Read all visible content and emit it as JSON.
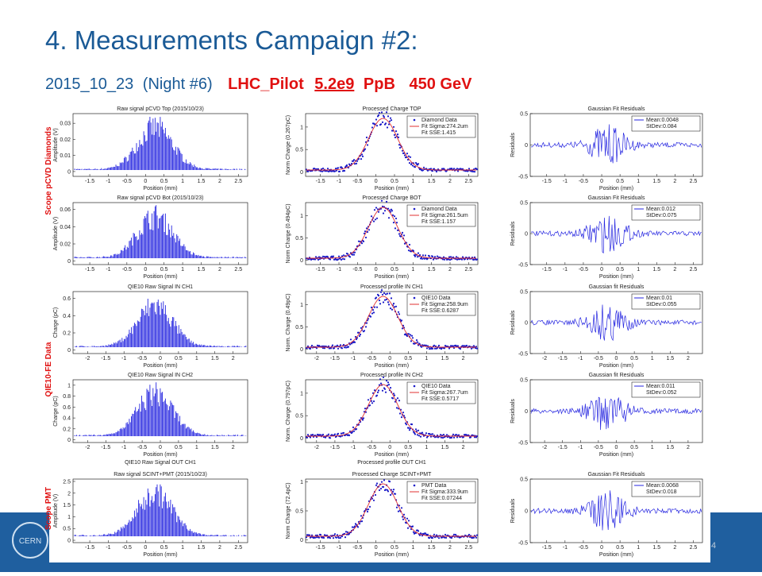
{
  "header": {
    "title": "4. Measurements Campaign #2:",
    "date": "2015_10_23",
    "night": "(Night #6)",
    "beam": "LHC_Pilot",
    "intensity": "5.2e9",
    "unit": "PpB",
    "energy": "450 GeV"
  },
  "row_labels": [
    "Scope pCVD Diamonds",
    "QIE10-FE Data",
    "Scope PMT"
  ],
  "page_number": "4",
  "panels": [
    {
      "kind": "raw",
      "title": "Raw signal pCVD Top (2015/10/23)",
      "xlabel": "Position (mm)",
      "ylabel": "Amplitude (V)",
      "xlim": [
        -1.95,
        2.75
      ],
      "ylim": [
        -0.003,
        0.036
      ],
      "xticks": [
        -1.5,
        -1,
        -0.5,
        0,
        0.5,
        1,
        1.5,
        2,
        2.5
      ],
      "yticks": [
        0,
        0.01,
        0.02,
        0.03
      ]
    },
    {
      "kind": "proc",
      "title": "Processed Charge TOP",
      "xlabel": "Position (mm)",
      "ylabel": "Norm Charge (0.267pC)",
      "xlim": [
        -1.9,
        2.75
      ],
      "ylim": [
        -0.1,
        1.3
      ],
      "xticks": [
        -1.5,
        -1,
        -0.5,
        0,
        0.5,
        1,
        1.5,
        2,
        2.5
      ],
      "yticks": [
        0,
        0.5,
        1
      ],
      "legend": [
        "Diamond Data",
        "Fit Sigma:274.2um",
        "Fit SSE:1.415"
      ]
    },
    {
      "kind": "resid",
      "title": "Gaussian Fit Residuals",
      "xlabel": "Position (mm)",
      "ylabel": "Residuals",
      "xlim": [
        -1.95,
        2.75
      ],
      "ylim": [
        -0.5,
        0.5
      ],
      "xticks": [
        -1.5,
        -1,
        -0.5,
        0,
        0.5,
        1,
        1.5,
        2,
        2.5
      ],
      "yticks": [
        -0.5,
        0,
        0.5
      ],
      "legend": [
        "Mean:0.0048",
        "StDev:0.084"
      ]
    },
    {
      "kind": "raw",
      "title": "Raw signal pCVD Bot (2015/10/23)",
      "xlabel": "Position (mm)",
      "ylabel": "Amplitude (V)",
      "xlim": [
        -1.95,
        2.75
      ],
      "ylim": [
        -0.004,
        0.068
      ],
      "xticks": [
        -1.5,
        -1,
        -0.5,
        0,
        0.5,
        1,
        1.5,
        2,
        2.5
      ],
      "yticks": [
        0,
        0.02,
        0.04,
        0.06
      ]
    },
    {
      "kind": "proc",
      "title": "Processed Charge BOT",
      "xlabel": "Position (mm)",
      "ylabel": "Norm Charge (0.494pC)",
      "xlim": [
        -1.9,
        2.75
      ],
      "ylim": [
        -0.1,
        1.3
      ],
      "xticks": [
        -1.5,
        -1,
        -0.5,
        0,
        0.5,
        1,
        1.5,
        2,
        2.5
      ],
      "yticks": [
        0,
        0.5,
        1
      ],
      "legend": [
        "Diamond Data",
        "Fit Sigma:261.5um",
        "Fit SSE:1.157"
      ]
    },
    {
      "kind": "resid",
      "title": "Gaussian Fit Residuals",
      "xlabel": "Position (mm)",
      "ylabel": "Residuals",
      "xlim": [
        -1.95,
        2.75
      ],
      "ylim": [
        -0.5,
        0.5
      ],
      "xticks": [
        -1.5,
        -1,
        -0.5,
        0,
        0.5,
        1,
        1.5,
        2,
        2.5
      ],
      "yticks": [
        -0.5,
        0,
        0.5
      ],
      "legend": [
        "Mean:0.012",
        "StDev:0.075"
      ]
    },
    {
      "kind": "raw",
      "title": "QIE10 Raw Signal IN CH1",
      "xlabel": "Position (mm)",
      "ylabel": "Charge (pC)",
      "xlim": [
        -2.4,
        2.4
      ],
      "ylim": [
        -0.04,
        0.68
      ],
      "xticks": [
        -2,
        -1.5,
        -1,
        -0.5,
        0,
        0.5,
        1,
        1.5,
        2
      ],
      "yticks": [
        0,
        0.2,
        0.4,
        0.6
      ]
    },
    {
      "kind": "proc",
      "title": "Processed profile IN CH1",
      "xlabel": "Position (mm)",
      "ylabel": "Norm. Charge (0.49pC)",
      "xlim": [
        -2.3,
        2.4
      ],
      "ylim": [
        -0.1,
        1.3
      ],
      "xticks": [
        -2,
        -1.5,
        -1,
        -0.5,
        0,
        0.5,
        1,
        1.5,
        2
      ],
      "yticks": [
        0,
        0.5,
        1
      ],
      "legend": [
        "QIE10 Data",
        "Fit Sigma:258.9um",
        "Fit SSE:0.6287"
      ]
    },
    {
      "kind": "resid",
      "title": "Gaussian fit Residuals",
      "xlabel": "Position (mm)",
      "ylabel": "Residuals",
      "xlim": [
        -2.4,
        2.4
      ],
      "ylim": [
        -0.5,
        0.5
      ],
      "xticks": [
        -2,
        -1.5,
        -1,
        -0.5,
        0,
        0.5,
        1,
        1.5,
        2
      ],
      "yticks": [
        -0.5,
        0,
        0.5
      ],
      "legend": [
        "Mean:0.01",
        "StDev:0.055"
      ]
    },
    {
      "kind": "raw",
      "title": "QIE10 Raw Signal IN CH2",
      "xlabel": "Position (mm)",
      "ylabel": "Charge (pC)",
      "xlim": [
        -2.4,
        2.4
      ],
      "ylim": [
        -0.05,
        1.1
      ],
      "xticks": [
        -2,
        -1.5,
        -1,
        -0.5,
        0,
        0.5,
        1,
        1.5,
        2
      ],
      "yticks": [
        0,
        0.2,
        0.4,
        0.6,
        0.8,
        1
      ]
    },
    {
      "kind": "proc",
      "title": "Processed profile IN CH2",
      "xlabel": "Position (mm)",
      "ylabel": "Norm. Charge (0.797pC)",
      "xlim": [
        -2.3,
        2.4
      ],
      "ylim": [
        -0.1,
        1.3
      ],
      "xticks": [
        -2,
        -1.5,
        -1,
        -0.5,
        0,
        0.5,
        1,
        1.5,
        2
      ],
      "yticks": [
        0,
        0.5,
        1
      ],
      "legend": [
        "QIE10 Data",
        "Fit Sigma:267.7um",
        "Fit SSE:0.5717"
      ]
    },
    {
      "kind": "resid",
      "title": "Gaussian fit Residuals",
      "xlabel": "Position (mm)",
      "ylabel": "Residuals",
      "xlim": [
        -2.4,
        2.4
      ],
      "ylim": [
        -0.5,
        0.5
      ],
      "xticks": [
        -2,
        -1.5,
        -1,
        -0.5,
        0,
        0.5,
        1,
        1.5,
        2
      ],
      "yticks": [
        -0.5,
        0,
        0.5
      ],
      "legend": [
        "Mean:0.011",
        "StDev:0.052"
      ]
    },
    {
      "kind": "raw",
      "title": "Raw signal SCINT+PMT (2015/10/23)",
      "behind_title": "QIE10 Raw Signal OUT CH1",
      "xlabel": "Position (mm)",
      "ylabel": "Amplitude (V)",
      "xlim": [
        -1.95,
        2.75
      ],
      "ylim": [
        -0.1,
        2.6
      ],
      "xticks": [
        -1.5,
        -1,
        -0.5,
        0,
        0.5,
        1,
        1.5,
        2,
        2.5
      ],
      "yticks": [
        0,
        0.5,
        1,
        1.5,
        2,
        2.5
      ]
    },
    {
      "kind": "proc",
      "title": "Processed Charge SCINT+PMT",
      "behind_title": "Processed profile OUT CH1",
      "xlabel": "Position (mm)",
      "ylabel": "Norm Charge (72.4pC)",
      "xlim": [
        -1.9,
        2.75
      ],
      "ylim": [
        -0.05,
        1.05
      ],
      "xticks": [
        -1.5,
        -1,
        -0.5,
        0,
        0.5,
        1,
        1.5,
        2,
        2.5
      ],
      "yticks": [
        0,
        0.5,
        1
      ],
      "legend": [
        "PMT Data",
        "Fit Sigma:333.9um",
        "Fit SSE:0.07244"
      ]
    },
    {
      "kind": "resid",
      "title": "Gaussian Fit Residuals",
      "xlabel": "Position (mm)",
      "ylabel": "Residuals",
      "xlim": [
        -1.95,
        2.75
      ],
      "ylim": [
        -0.5,
        0.5
      ],
      "xticks": [
        -1.5,
        -1,
        -0.5,
        0,
        0.5,
        1,
        1.5,
        2,
        2.5
      ],
      "yticks": [
        -0.5,
        0,
        0.5
      ],
      "legend": [
        "Mean:0.0068",
        "StDev:0.018"
      ]
    }
  ]
}
